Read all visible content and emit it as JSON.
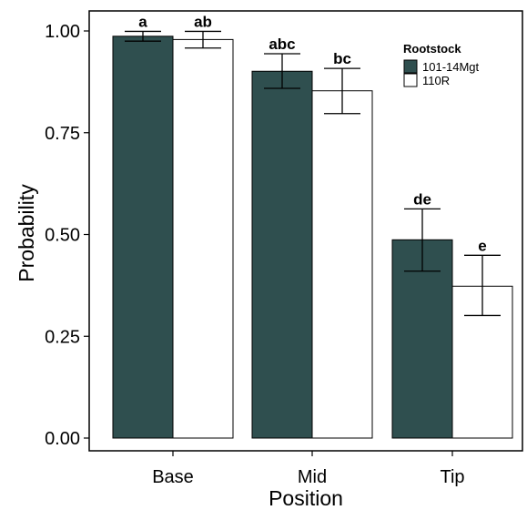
{
  "chart_data": {
    "type": "bar",
    "xlabel": "Position",
    "ylabel": "Probability",
    "categories": [
      "Base",
      "Mid",
      "Tip"
    ],
    "ylim": [
      0,
      1.0
    ],
    "yticks": [
      "0.00",
      "0.25",
      "0.50",
      "0.75",
      "1.00"
    ],
    "ytick_values": [
      0,
      0.25,
      0.5,
      0.75,
      1.0
    ],
    "grid": false,
    "legend_placement": "top-right",
    "legend_title": "Rootstock",
    "colors": [
      "#2f4f4f",
      "#ffffff"
    ],
    "series": [
      {
        "name": "101-14Mgt",
        "values": [
          0.987,
          0.901,
          0.487
        ],
        "err_low": [
          0.975,
          0.859,
          0.41
        ],
        "err_high": [
          0.999,
          0.944,
          0.563
        ],
        "labels": [
          "a",
          "abc",
          "de"
        ]
      },
      {
        "name": "110R",
        "values": [
          0.979,
          0.853,
          0.373
        ],
        "err_low": [
          0.958,
          0.797,
          0.301
        ],
        "err_high": [
          0.999,
          0.908,
          0.449
        ],
        "labels": [
          "ab",
          "bc",
          "e"
        ]
      }
    ]
  }
}
